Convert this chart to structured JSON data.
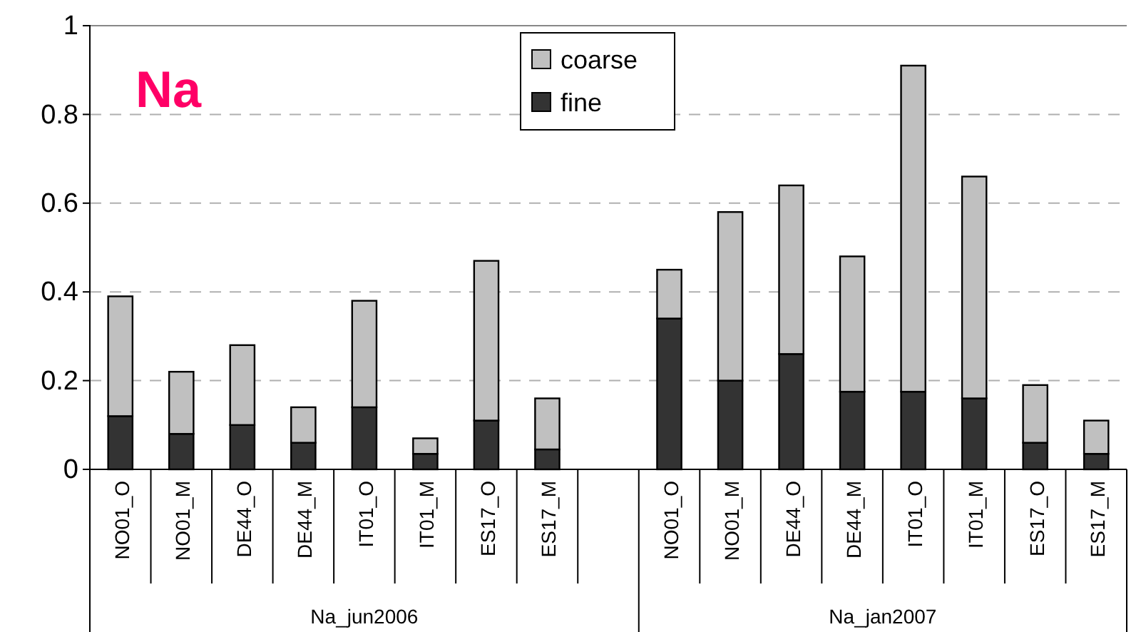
{
  "chart_data": {
    "type": "bar",
    "title": "Na",
    "stacked": true,
    "categories": [
      "NO01_O",
      "NO01_M",
      "DE44_O",
      "DE44_M",
      "IT01_O",
      "IT01_M",
      "ES17_O",
      "ES17_M",
      null,
      "NO01_O",
      "NO01_M",
      "DE44_O",
      "DE44_M",
      "IT01_O",
      "IT01_M",
      "ES17_O",
      "ES17_M"
    ],
    "series": [
      {
        "name": "fine",
        "color": "#333333",
        "values": [
          0.12,
          0.08,
          0.1,
          0.06,
          0.14,
          0.035,
          0.11,
          0.045,
          null,
          0.34,
          0.2,
          0.26,
          0.175,
          0.175,
          0.16,
          0.06,
          0.035
        ]
      },
      {
        "name": "coarse",
        "color": "#c0c0c0",
        "values": [
          0.27,
          0.14,
          0.18,
          0.08,
          0.24,
          0.035,
          0.36,
          0.115,
          null,
          0.11,
          0.38,
          0.38,
          0.305,
          0.735,
          0.5,
          0.13,
          0.075
        ]
      }
    ],
    "annotations": [
      "Na_jun2006",
      "Na_jan2007"
    ],
    "ylim": [
      0,
      1
    ],
    "yticks": [
      0,
      0.2,
      0.4,
      0.6,
      0.8,
      1
    ],
    "grid": "y",
    "legend": "top"
  }
}
